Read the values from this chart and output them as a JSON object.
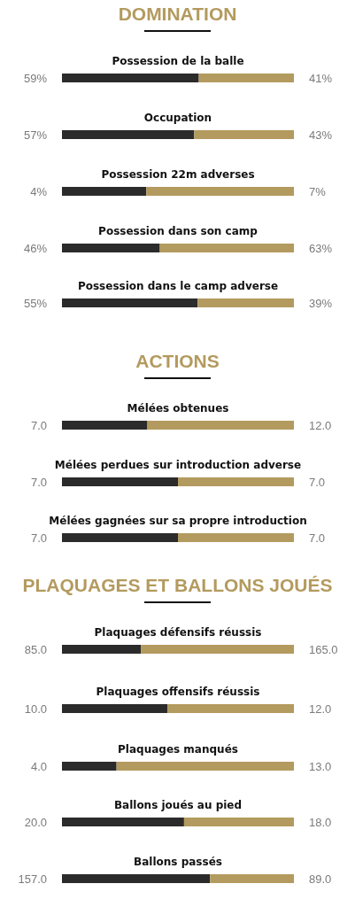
{
  "chart_data": [
    {
      "type": "bar",
      "title": "DOMINATION",
      "orientation": "horizontal",
      "stacked": true,
      "categories": [
        "Possession de la balle"
      ],
      "xlim": [
        0,
        100
      ],
      "series": [
        {
          "color": "#2b2b2b",
          "values": [
            59
          ],
          "value_labels": [
            "59%"
          ]
        },
        {
          "color": "#b39a5e",
          "values": [
            41
          ],
          "value_labels": [
            "41%"
          ]
        }
      ]
    },
    {
      "type": "bar",
      "orientation": "horizontal",
      "stacked": true,
      "categories": [
        "Occupation"
      ],
      "xlim": [
        0,
        100
      ],
      "series": [
        {
          "color": "#2b2b2b",
          "values": [
            57
          ],
          "value_labels": [
            "57%"
          ]
        },
        {
          "color": "#b39a5e",
          "values": [
            43
          ],
          "value_labels": [
            "43%"
          ]
        }
      ]
    },
    {
      "type": "bar",
      "orientation": "horizontal",
      "stacked": true,
      "categories": [
        "Possession 22m adverses"
      ],
      "xlim": [
        0,
        11
      ],
      "series": [
        {
          "color": "#2b2b2b",
          "values": [
            4
          ],
          "value_labels": [
            "4%"
          ]
        },
        {
          "color": "#b39a5e",
          "values": [
            7
          ],
          "value_labels": [
            "7%"
          ]
        }
      ]
    },
    {
      "type": "bar",
      "orientation": "horizontal",
      "stacked": true,
      "categories": [
        "Possession dans son camp"
      ],
      "xlim": [
        0,
        109
      ],
      "series": [
        {
          "color": "#2b2b2b",
          "values": [
            46
          ],
          "value_labels": [
            "46%"
          ]
        },
        {
          "color": "#b39a5e",
          "values": [
            63
          ],
          "value_labels": [
            "63%"
          ]
        }
      ]
    },
    {
      "type": "bar",
      "orientation": "horizontal",
      "stacked": true,
      "categories": [
        "Possession dans le camp adverse"
      ],
      "xlim": [
        0,
        94
      ],
      "series": [
        {
          "color": "#2b2b2b",
          "values": [
            55
          ],
          "value_labels": [
            "55%"
          ]
        },
        {
          "color": "#b39a5e",
          "values": [
            39
          ],
          "value_labels": [
            "39%"
          ]
        }
      ]
    },
    {
      "type": "bar",
      "title": "ACTIONS",
      "orientation": "horizontal",
      "stacked": true,
      "categories": [
        "Mélées obtenues"
      ],
      "xlim": [
        0,
        19
      ],
      "series": [
        {
          "color": "#2b2b2b",
          "values": [
            7
          ],
          "value_labels": [
            "7.0"
          ]
        },
        {
          "color": "#b39a5e",
          "values": [
            12
          ],
          "value_labels": [
            "12.0"
          ]
        }
      ]
    },
    {
      "type": "bar",
      "orientation": "horizontal",
      "stacked": true,
      "categories": [
        "Mélées perdues sur introduction adverse"
      ],
      "xlim": [
        0,
        14
      ],
      "series": [
        {
          "color": "#2b2b2b",
          "values": [
            7
          ],
          "value_labels": [
            "7.0"
          ]
        },
        {
          "color": "#b39a5e",
          "values": [
            7
          ],
          "value_labels": [
            "7.0"
          ]
        }
      ]
    },
    {
      "type": "bar",
      "orientation": "horizontal",
      "stacked": true,
      "categories": [
        "Mélées gagnées sur sa propre introduction"
      ],
      "xlim": [
        0,
        14
      ],
      "series": [
        {
          "color": "#2b2b2b",
          "values": [
            7
          ],
          "value_labels": [
            "7.0"
          ]
        },
        {
          "color": "#b39a5e",
          "values": [
            7
          ],
          "value_labels": [
            "7.0"
          ]
        }
      ]
    },
    {
      "type": "bar",
      "title": "PLAQUAGES ET BALLONS JOUÉS",
      "orientation": "horizontal",
      "stacked": true,
      "categories": [
        "Plaquages défensifs réussis"
      ],
      "xlim": [
        0,
        250
      ],
      "series": [
        {
          "color": "#2b2b2b",
          "values": [
            85
          ],
          "value_labels": [
            "85.0"
          ]
        },
        {
          "color": "#b39a5e",
          "values": [
            165
          ],
          "value_labels": [
            "165.0"
          ]
        }
      ]
    },
    {
      "type": "bar",
      "orientation": "horizontal",
      "stacked": true,
      "categories": [
        "Plaquages offensifs réussis"
      ],
      "xlim": [
        0,
        22
      ],
      "series": [
        {
          "color": "#2b2b2b",
          "values": [
            10
          ],
          "value_labels": [
            "10.0"
          ]
        },
        {
          "color": "#b39a5e",
          "values": [
            12
          ],
          "value_labels": [
            "12.0"
          ]
        }
      ]
    },
    {
      "type": "bar",
      "orientation": "horizontal",
      "stacked": true,
      "categories": [
        "Plaquages manqués"
      ],
      "xlim": [
        0,
        17
      ],
      "series": [
        {
          "color": "#2b2b2b",
          "values": [
            4
          ],
          "value_labels": [
            "4.0"
          ]
        },
        {
          "color": "#b39a5e",
          "values": [
            13
          ],
          "value_labels": [
            "13.0"
          ]
        }
      ]
    },
    {
      "type": "bar",
      "orientation": "horizontal",
      "stacked": true,
      "categories": [
        "Ballons joués au pied"
      ],
      "xlim": [
        0,
        38
      ],
      "series": [
        {
          "color": "#2b2b2b",
          "values": [
            20
          ],
          "value_labels": [
            "20.0"
          ]
        },
        {
          "color": "#b39a5e",
          "values": [
            18
          ],
          "value_labels": [
            "18.0"
          ]
        }
      ]
    },
    {
      "type": "bar",
      "orientation": "horizontal",
      "stacked": true,
      "categories": [
        "Ballons passés"
      ],
      "xlim": [
        0,
        246
      ],
      "series": [
        {
          "color": "#2b2b2b",
          "values": [
            157
          ],
          "value_labels": [
            "157.0"
          ]
        },
        {
          "color": "#b39a5e",
          "values": [
            89
          ],
          "value_labels": [
            "89.0"
          ]
        }
      ]
    }
  ]
}
